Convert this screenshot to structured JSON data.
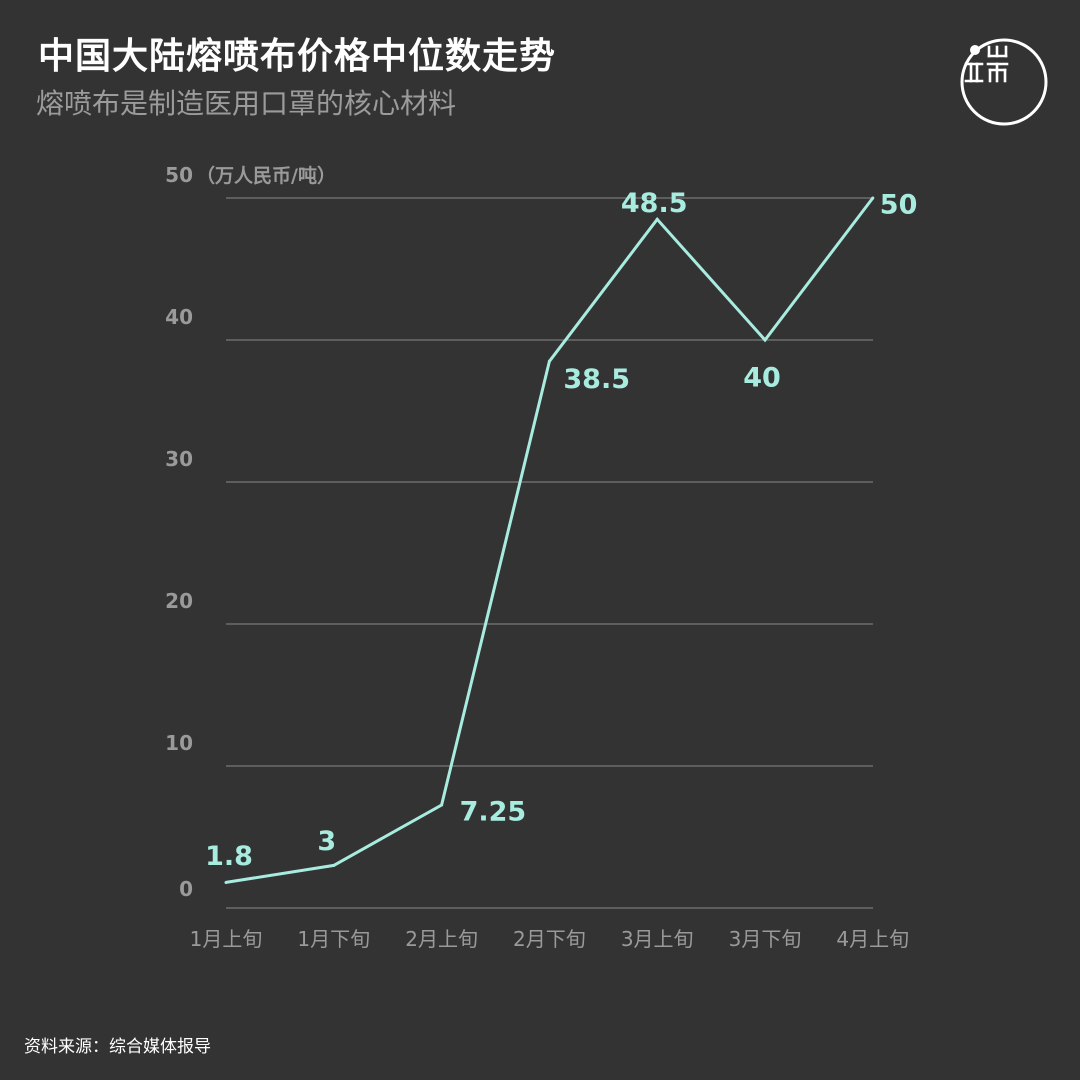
{
  "header": {
    "title": "中国大陆熔喷布价格中位数走势",
    "subtitle": "熔喷布是制造医用口罩的核心材料"
  },
  "footer": {
    "source": "资料来源：综合媒体报导"
  },
  "colors": {
    "background": "#333333",
    "line": "#a8ece0",
    "grid": "#8a8a8a",
    "tick_text": "#9a9a9a",
    "title": "#ffffff",
    "subtitle": "#9b9b9b"
  },
  "logo": {
    "icon": "theinitium-logo-icon"
  },
  "chart_data": {
    "type": "line",
    "title": "中国大陆熔喷布价格中位数走势",
    "subtitle": "熔喷布是制造医用口罩的核心材料",
    "xlabel": "",
    "ylabel": "（万人民币/吨）",
    "categories": [
      "1月上旬",
      "1月下旬",
      "2月上旬",
      "2月下旬",
      "3月上旬",
      "3月下旬",
      "4月上旬"
    ],
    "values": [
      1.8,
      3,
      7.25,
      38.5,
      48.5,
      40,
      50
    ],
    "data_labels": [
      "1.8",
      "3",
      "7.25",
      "38.5",
      "48.5",
      "40",
      "50"
    ],
    "y_ticks": [
      0,
      10,
      20,
      30,
      40,
      50
    ],
    "y_tick_labels": [
      "0",
      "10",
      "20",
      "30",
      "40",
      "50"
    ],
    "ylim": [
      0,
      50
    ],
    "grid": true,
    "legend": "none"
  }
}
